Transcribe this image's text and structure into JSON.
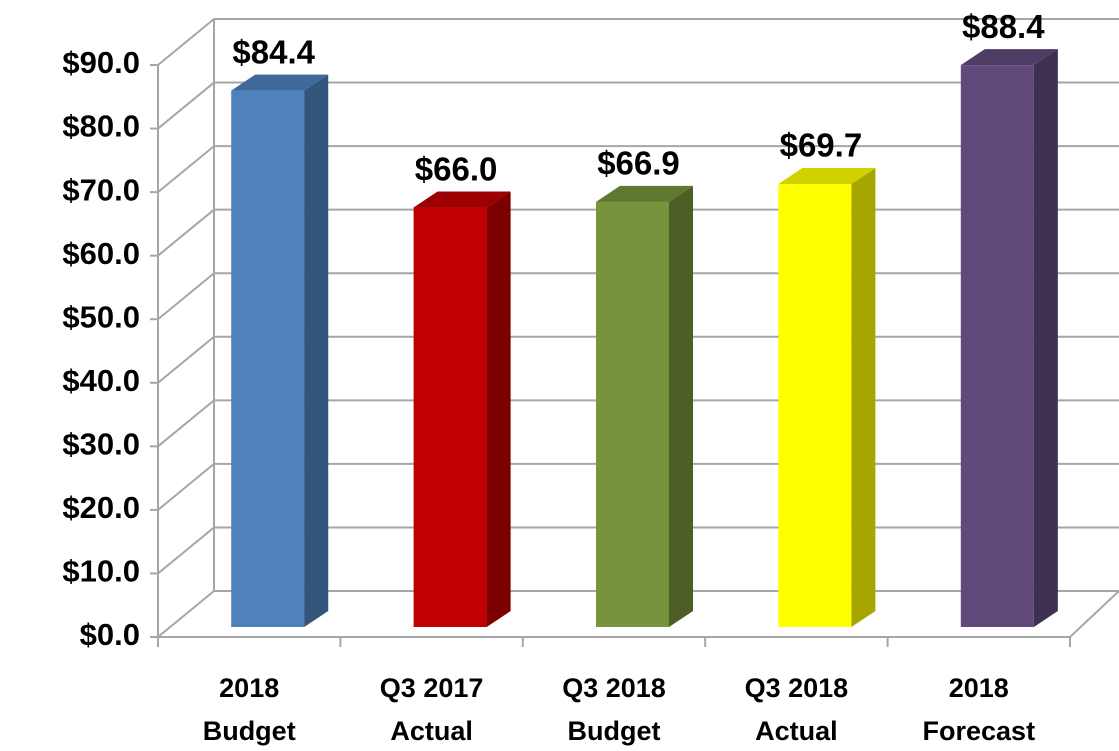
{
  "chart_data": {
    "type": "bar3d",
    "categories": [
      [
        "2018",
        "Budget"
      ],
      [
        "Q3 2017",
        "Actual"
      ],
      [
        "Q3 2018",
        "Budget"
      ],
      [
        "Q3 2018",
        "Actual"
      ],
      [
        "2018",
        "Forecast"
      ]
    ],
    "values": [
      84.4,
      66.0,
      66.9,
      69.7,
      88.4
    ],
    "value_labels": [
      "$84.4",
      "$66.0",
      "$66.9",
      "$69.7",
      "$88.4"
    ],
    "colors": [
      "#4f81bd",
      "#c00000",
      "#77933c",
      "#ffff00",
      "#604a7b"
    ],
    "ylim": [
      0,
      90
    ],
    "yticks": [
      {
        "value": 0,
        "label": "$0.0"
      },
      {
        "value": 10,
        "label": "$10.0"
      },
      {
        "value": 20,
        "label": "$20.0"
      },
      {
        "value": 30,
        "label": "$30.0"
      },
      {
        "value": 40,
        "label": "$40.0"
      },
      {
        "value": 50,
        "label": "$50.0"
      },
      {
        "value": 60,
        "label": "$60.0"
      },
      {
        "value": 70,
        "label": "$70.0"
      },
      {
        "value": 80,
        "label": "$80.0"
      },
      {
        "value": 90,
        "label": "$90.0"
      }
    ],
    "grid": true
  }
}
